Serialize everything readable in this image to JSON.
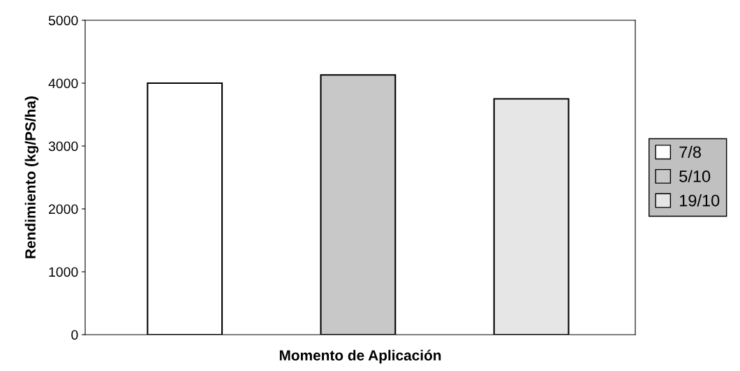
{
  "chart_data": {
    "type": "bar",
    "xlabel": "Momento de Aplicación",
    "ylabel": "Rendimiento (kg/PS/ha)",
    "categories": [
      null
    ],
    "series": [
      {
        "name": "7/8",
        "color": "#ffffff",
        "values": [
          4000
        ]
      },
      {
        "name": "5/10",
        "color": "#c8c8c8",
        "values": [
          4130
        ]
      },
      {
        "name": "19/10",
        "color": "#e6e6e6",
        "values": [
          3750
        ]
      }
    ],
    "ylim": [
      0,
      5000
    ],
    "yticks": [
      0,
      1000,
      2000,
      3000,
      4000,
      5000
    ],
    "grid": false,
    "legend": "right"
  }
}
